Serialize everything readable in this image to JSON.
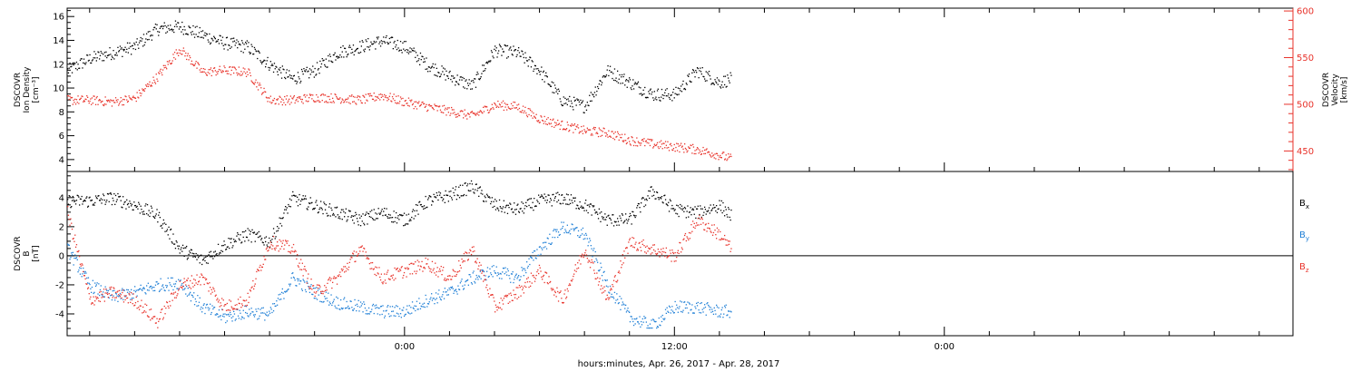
{
  "colors": {
    "black": "#000000",
    "red": "#e8322a",
    "blue": "#1f7fd6",
    "frame": "#000000"
  },
  "x_axis": {
    "label": "hours:minutes, Apr. 26, 2017 - Apr. 28, 2017",
    "start_hour": -15,
    "end_hour": 39.5,
    "major_ticks": [
      {
        "hour": 0,
        "label": "0:00"
      },
      {
        "hour": 12,
        "label": "12:00"
      },
      {
        "hour": 24,
        "label": "0:00"
      }
    ],
    "minor_every_hours": 2,
    "data_end_hour": 14.5
  },
  "chart_data": [
    {
      "type": "scatter",
      "panel": "top",
      "title": "",
      "ylabel_left": [
        "DSCOVR",
        "Ion Density",
        "[cm⁻³]"
      ],
      "ylabel_right": [
        "DSCOVR",
        "Velocity",
        "[km/s]"
      ],
      "ylim_left": [
        3,
        16.7
      ],
      "ylim_right": [
        428,
        603
      ],
      "yticks_left": [
        4,
        6,
        8,
        10,
        12,
        14,
        16
      ],
      "yticks_right": [
        450,
        500,
        550,
        600
      ],
      "series": [
        {
          "name": "",
          "axis": "left",
          "color": "black",
          "x": [
            -15,
            -14,
            -13,
            -12,
            -11,
            -10,
            -9,
            -8,
            -7,
            -6,
            -5,
            -4,
            -3,
            -2,
            -1,
            0,
            1,
            2,
            3,
            4,
            5,
            6,
            7,
            8,
            9,
            10,
            11,
            12,
            13,
            14,
            14.5
          ],
          "y": [
            11.5,
            12.5,
            13.0,
            13.5,
            15.0,
            15.2,
            14.5,
            13.8,
            13.5,
            12.0,
            10.8,
            11.5,
            13.0,
            13.5,
            14.0,
            13.5,
            12.0,
            11.0,
            10.2,
            13.2,
            13.0,
            11.5,
            9.0,
            8.5,
            11.5,
            10.5,
            9.5,
            9.5,
            11.5,
            10.5,
            10.8
          ]
        },
        {
          "name": "",
          "axis": "right",
          "color": "red",
          "x": [
            -15,
            -14,
            -13,
            -12,
            -11,
            -10,
            -9,
            -8,
            -7,
            -6,
            -5,
            -4,
            -3,
            -2,
            -1,
            0,
            1,
            2,
            3,
            4,
            5,
            6,
            7,
            8,
            9,
            10,
            11,
            12,
            13,
            14,
            14.5
          ],
          "y": [
            505,
            505,
            503,
            507,
            530,
            560,
            535,
            537,
            535,
            505,
            505,
            508,
            507,
            505,
            510,
            503,
            498,
            493,
            488,
            500,
            498,
            485,
            478,
            472,
            470,
            462,
            458,
            455,
            452,
            446,
            442
          ]
        }
      ]
    },
    {
      "type": "scatter",
      "panel": "bottom",
      "title": "",
      "ylabel_left": [
        "DSCOVR",
        "B",
        "[nT]"
      ],
      "ylim": [
        -5.5,
        5.8
      ],
      "yticks": [
        -4,
        -2,
        0,
        2,
        4
      ],
      "zero_line": true,
      "legend": "right",
      "series": [
        {
          "name": "Bx",
          "legend_main": "B",
          "legend_sub": "x",
          "color": "black",
          "x": [
            -15,
            -14,
            -13,
            -12,
            -11,
            -10,
            -9,
            -8,
            -7,
            -6,
            -5,
            -4,
            -3,
            -2,
            -1,
            0,
            1,
            2,
            3,
            4,
            5,
            6,
            7,
            8,
            9,
            10,
            11,
            12,
            13,
            14,
            14.5
          ],
          "y": [
            3.8,
            3.8,
            4.0,
            3.5,
            2.8,
            0.5,
            -0.3,
            0.8,
            1.5,
            1.0,
            4.0,
            3.5,
            3.0,
            2.5,
            3.0,
            2.5,
            3.8,
            4.2,
            4.8,
            3.5,
            3.2,
            3.8,
            4.0,
            3.5,
            2.5,
            2.5,
            4.5,
            3.2,
            3.0,
            3.5,
            2.8
          ]
        },
        {
          "name": "By",
          "legend_main": "B",
          "legend_sub": "y",
          "color": "blue",
          "x": [
            -15,
            -14,
            -13,
            -12,
            -11,
            -10,
            -9,
            -8,
            -7,
            -6,
            -5,
            -4,
            -3,
            -2,
            -1,
            0,
            1,
            2,
            3,
            4,
            5,
            6,
            7,
            8,
            9,
            10,
            11,
            12,
            13,
            14,
            14.5
          ],
          "y": [
            0.5,
            -2.0,
            -2.8,
            -2.5,
            -2.0,
            -1.8,
            -3.5,
            -4.2,
            -3.8,
            -4.0,
            -1.5,
            -2.5,
            -3.2,
            -3.5,
            -3.8,
            -3.8,
            -3.0,
            -2.5,
            -1.5,
            -1.0,
            -1.5,
            0.5,
            2.0,
            1.5,
            -2.0,
            -4.2,
            -4.8,
            -3.5,
            -3.5,
            -3.8,
            -3.8
          ]
        },
        {
          "name": "Bz",
          "legend_main": "B",
          "legend_sub": "z",
          "color": "red",
          "x": [
            -15,
            -14,
            -13,
            -12,
            -11,
            -10,
            -9,
            -8,
            -7,
            -6,
            -5,
            -4,
            -3,
            -2,
            -1,
            0,
            1,
            2,
            3,
            4,
            5,
            6,
            7,
            8,
            9,
            10,
            11,
            12,
            13,
            14,
            14.5
          ],
          "y": [
            3.0,
            -3.0,
            -2.5,
            -3.0,
            -4.5,
            -2.0,
            -1.5,
            -3.5,
            -3.0,
            1.0,
            0.5,
            -2.5,
            -1.5,
            0.5,
            -1.5,
            -1.0,
            -0.5,
            -1.5,
            0.5,
            -3.5,
            -2.5,
            -1.0,
            -3.0,
            0.5,
            -3.0,
            1.0,
            0.5,
            0.0,
            2.5,
            1.5,
            0.5
          ]
        }
      ]
    }
  ]
}
